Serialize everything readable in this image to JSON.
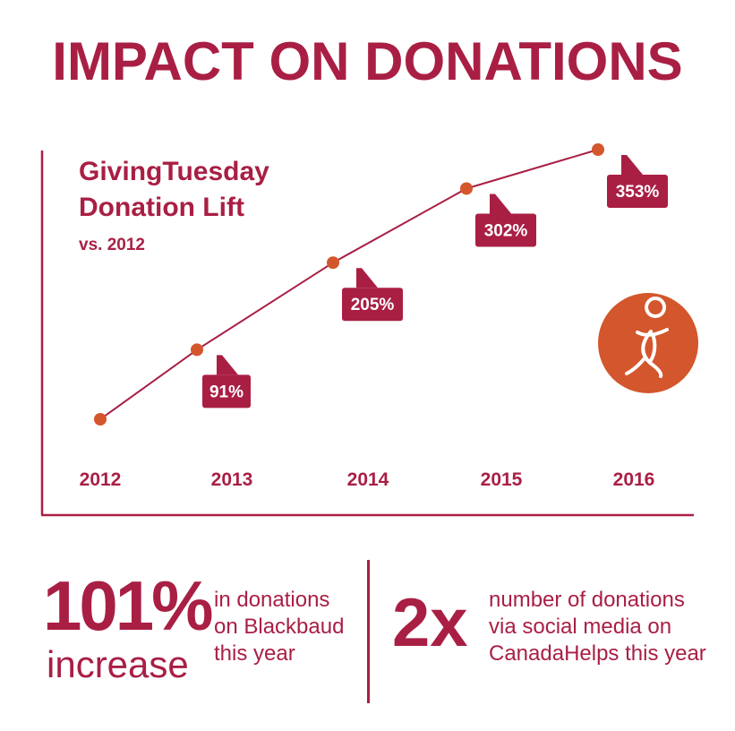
{
  "title": "IMPACT ON DONATIONS",
  "colors": {
    "primary": "#a91f44",
    "accent": "#d4562c"
  },
  "icon": "stick-figure-icon",
  "chart_data": {
    "type": "line",
    "title": "GivingTuesday Donation Lift",
    "subtitle": "vs. 2012",
    "categories": [
      "2012",
      "2013",
      "2014",
      "2015",
      "2016"
    ],
    "values": [
      0,
      91,
      205,
      302,
      353
    ],
    "data_labels": [
      "",
      "91%",
      "205%",
      "302%",
      "353%"
    ],
    "xlabel": "",
    "ylabel": "",
    "ylim": [
      0,
      353
    ],
    "grid": false
  },
  "stats": [
    {
      "value": "101%",
      "unit": "increase",
      "description": [
        "in donations",
        "on Blackbaud",
        "this year"
      ]
    },
    {
      "value": "2x",
      "description": [
        "number of donations",
        "via social media on",
        "CanadaHelps this year"
      ]
    }
  ]
}
